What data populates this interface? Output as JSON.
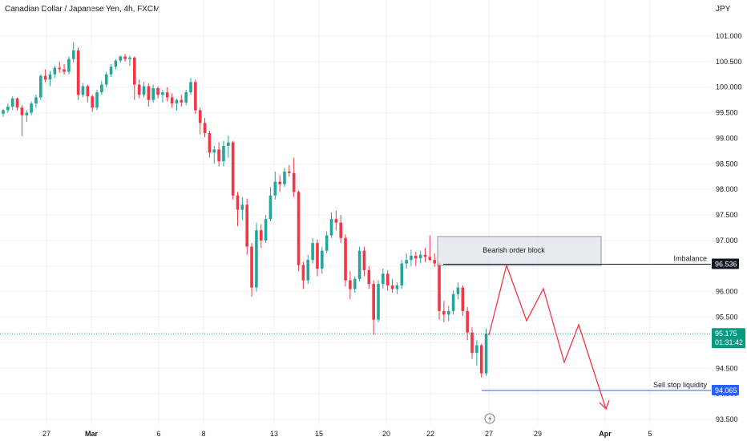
{
  "header": {
    "title": "Canadian Dollar / Japanese Yen, 4h, FXCM"
  },
  "axis": {
    "unit": "JPY"
  },
  "chart_data": {
    "type": "candlestick",
    "ylim": [
      93.5,
      101.5
    ],
    "y_ticks": [
      "101.000",
      "100.500",
      "100.000",
      "99.500",
      "99.000",
      "98.500",
      "98.000",
      "97.500",
      "97.000",
      "96.500",
      "96.000",
      "95.500",
      "95.000",
      "94.500",
      "94.000",
      "93.500"
    ],
    "y_tick_values": [
      101.0,
      100.5,
      100.0,
      99.5,
      99.0,
      98.5,
      98.0,
      97.5,
      97.0,
      96.5,
      96.0,
      95.5,
      95.0,
      94.5,
      94.0,
      93.5
    ],
    "x_ticks": [
      {
        "label": "27",
        "bold": false
      },
      {
        "label": "Mar",
        "bold": true
      },
      {
        "label": "6",
        "bold": false
      },
      {
        "label": "8",
        "bold": false
      },
      {
        "label": "13",
        "bold": false
      },
      {
        "label": "15",
        "bold": false
      },
      {
        "label": "20",
        "bold": false
      },
      {
        "label": "22",
        "bold": false
      },
      {
        "label": "27",
        "bold": false
      },
      {
        "label": "29",
        "bold": false
      },
      {
        "label": "Apr",
        "bold": true
      },
      {
        "label": "5",
        "bold": false
      }
    ],
    "candles": [
      [
        99.48,
        99.58,
        99.42,
        99.55
      ],
      [
        99.55,
        99.68,
        99.5,
        99.62
      ],
      [
        99.62,
        99.82,
        99.55,
        99.78
      ],
      [
        99.78,
        99.8,
        99.55,
        99.6
      ],
      [
        99.6,
        99.65,
        99.05,
        99.45
      ],
      [
        99.45,
        99.55,
        99.32,
        99.5
      ],
      [
        99.5,
        99.72,
        99.45,
        99.68
      ],
      [
        99.68,
        99.85,
        99.6,
        99.8
      ],
      [
        99.8,
        100.25,
        99.75,
        100.22
      ],
      [
        100.22,
        100.35,
        100.1,
        100.15
      ],
      [
        100.15,
        100.32,
        100.02,
        100.25
      ],
      [
        100.25,
        100.42,
        100.18,
        100.38
      ],
      [
        100.38,
        100.5,
        100.28,
        100.35
      ],
      [
        100.35,
        100.45,
        100.25,
        100.3
      ],
      [
        100.3,
        100.6,
        100.25,
        100.55
      ],
      [
        100.55,
        100.88,
        100.48,
        100.72
      ],
      [
        100.72,
        100.78,
        99.75,
        99.85
      ],
      [
        99.85,
        100.08,
        99.8,
        100.02
      ],
      [
        100.02,
        100.05,
        99.7,
        99.82
      ],
      [
        99.82,
        99.85,
        99.52,
        99.6
      ],
      [
        99.6,
        99.95,
        99.55,
        99.9
      ],
      [
        99.9,
        100.12,
        99.85,
        100.05
      ],
      [
        100.05,
        100.3,
        100.0,
        100.25
      ],
      [
        100.25,
        100.45,
        100.2,
        100.4
      ],
      [
        100.4,
        100.55,
        100.35,
        100.52
      ],
      [
        100.52,
        100.62,
        100.48,
        100.6
      ],
      [
        100.6,
        100.65,
        100.5,
        100.55
      ],
      [
        100.55,
        100.62,
        100.42,
        100.58
      ],
      [
        100.58,
        100.6,
        99.75,
        100.05
      ],
      [
        100.05,
        100.15,
        99.78,
        99.85
      ],
      [
        99.85,
        100.1,
        99.8,
        100.02
      ],
      [
        100.02,
        100.08,
        99.62,
        99.75
      ],
      [
        99.75,
        100.05,
        99.7,
        99.98
      ],
      [
        99.98,
        100.02,
        99.78,
        99.85
      ],
      [
        99.85,
        99.95,
        99.7,
        99.9
      ],
      [
        99.9,
        100.0,
        99.72,
        99.8
      ],
      [
        99.8,
        99.88,
        99.6,
        99.68
      ],
      [
        99.68,
        99.78,
        99.55,
        99.75
      ],
      [
        99.75,
        99.85,
        99.62,
        99.7
      ],
      [
        99.7,
        99.95,
        99.65,
        99.9
      ],
      [
        99.9,
        100.18,
        99.85,
        100.1
      ],
      [
        100.1,
        100.15,
        99.48,
        99.55
      ],
      [
        99.55,
        99.6,
        99.08,
        99.3
      ],
      [
        99.3,
        99.4,
        99.02,
        99.1
      ],
      [
        99.1,
        99.15,
        98.62,
        98.72
      ],
      [
        98.72,
        98.85,
        98.5,
        98.78
      ],
      [
        98.78,
        98.92,
        98.45,
        98.55
      ],
      [
        98.55,
        98.95,
        98.45,
        98.85
      ],
      [
        98.85,
        99.05,
        98.62,
        98.92
      ],
      [
        98.92,
        98.95,
        97.8,
        97.88
      ],
      [
        97.88,
        97.95,
        97.28,
        97.6
      ],
      [
        97.6,
        97.85,
        97.4,
        97.7
      ],
      [
        97.7,
        97.82,
        96.72,
        96.88
      ],
      [
        96.88,
        96.95,
        95.9,
        96.08
      ],
      [
        96.08,
        97.35,
        96.0,
        97.2
      ],
      [
        97.2,
        97.32,
        96.85,
        97.0
      ],
      [
        97.0,
        97.5,
        96.95,
        97.42
      ],
      [
        97.42,
        98.05,
        97.38,
        97.88
      ],
      [
        97.88,
        98.35,
        97.8,
        98.15
      ],
      [
        98.15,
        98.28,
        97.95,
        98.1
      ],
      [
        98.1,
        98.42,
        98.05,
        98.35
      ],
      [
        98.35,
        98.48,
        98.25,
        98.32
      ],
      [
        98.32,
        98.62,
        97.85,
        97.95
      ],
      [
        97.95,
        97.98,
        96.4,
        96.52
      ],
      [
        96.52,
        96.58,
        96.05,
        96.22
      ],
      [
        96.22,
        96.72,
        96.15,
        96.62
      ],
      [
        96.62,
        97.05,
        96.55,
        96.95
      ],
      [
        96.95,
        97.02,
        96.3,
        96.45
      ],
      [
        96.45,
        96.88,
        96.35,
        96.8
      ],
      [
        96.8,
        97.18,
        96.75,
        97.1
      ],
      [
        97.1,
        97.55,
        97.05,
        97.42
      ],
      [
        97.42,
        97.58,
        97.2,
        97.35
      ],
      [
        97.35,
        97.5,
        96.95,
        97.05
      ],
      [
        97.05,
        97.12,
        96.1,
        96.22
      ],
      [
        96.22,
        96.4,
        95.85,
        96.05
      ],
      [
        96.05,
        96.3,
        95.98,
        96.25
      ],
      [
        96.25,
        96.88,
        96.2,
        96.8
      ],
      [
        96.8,
        96.88,
        96.3,
        96.42
      ],
      [
        96.42,
        96.5,
        96.05,
        96.15
      ],
      [
        96.15,
        96.22,
        95.15,
        95.45
      ],
      [
        95.45,
        96.22,
        95.4,
        96.15
      ],
      [
        96.15,
        96.45,
        96.05,
        96.35
      ],
      [
        96.35,
        96.42,
        96.02,
        96.12
      ],
      [
        96.12,
        96.25,
        95.98,
        96.05
      ],
      [
        96.05,
        96.18,
        95.95,
        96.12
      ],
      [
        96.12,
        96.62,
        96.05,
        96.55
      ],
      [
        96.55,
        96.75,
        96.45,
        96.62
      ],
      [
        96.62,
        96.82,
        96.5,
        96.7
      ],
      [
        96.7,
        96.78,
        96.5,
        96.65
      ],
      [
        96.65,
        96.8,
        96.55,
        96.72
      ],
      [
        96.72,
        96.85,
        96.58,
        96.68
      ],
      [
        96.68,
        97.1,
        96.6,
        96.62
      ],
      [
        96.62,
        96.75,
        96.48,
        96.55
      ],
      [
        96.55,
        96.58,
        95.45,
        95.62
      ],
      [
        95.62,
        95.82,
        95.4,
        95.55
      ],
      [
        95.55,
        95.72,
        95.42,
        95.62
      ],
      [
        95.62,
        96.02,
        95.55,
        95.95
      ],
      [
        95.95,
        96.18,
        95.85,
        96.08
      ],
      [
        96.08,
        96.12,
        95.52,
        95.62
      ],
      [
        95.62,
        95.7,
        95.05,
        95.2
      ],
      [
        95.2,
        95.3,
        94.68,
        94.8
      ],
      [
        94.8,
        95.05,
        94.55,
        94.95
      ],
      [
        94.95,
        94.98,
        94.32,
        94.4
      ],
      [
        94.4,
        95.28,
        94.35,
        95.18
      ]
    ],
    "last_price": 95.175,
    "annotations": {
      "order_block": "Bearish order block",
      "imbalance": "Imbalance",
      "imbalance_price": "96.536",
      "liquidity": "Sell stop liquidity",
      "liquidity_price": "94.065",
      "current_price": "95.175",
      "countdown": "01:31:42"
    }
  },
  "colors": {
    "up": "#26a69a",
    "down": "#f23645",
    "projection": "#f23645",
    "liquidity_line": "#2962ff",
    "liquidity_tag": "#2962ff",
    "price_tag": "#089981",
    "imbalance_tag": "#131722",
    "order_block_fill": "#e0e3eb",
    "order_block_border": "#787b86"
  }
}
